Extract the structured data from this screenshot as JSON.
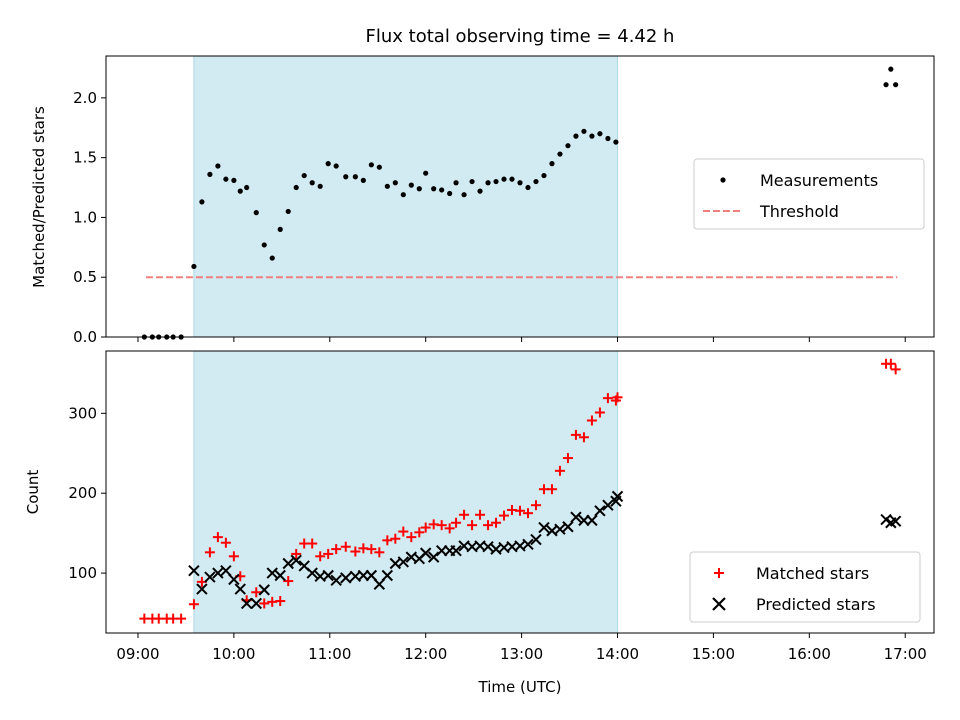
{
  "figure": {
    "title": "Flux total observing time = 4.42 h",
    "xlabel": "Time (UTC)"
  },
  "chart_data": [
    {
      "type": "scatter",
      "ylabel": "Matched/Predicted stars",
      "xlim": [
        "08:40",
        "17:18"
      ],
      "ylim": [
        0,
        2.35
      ],
      "yticks": [
        "0.0",
        "0.5",
        "1.0",
        "1.5",
        "2.0"
      ],
      "yticks_values": [
        0,
        0.5,
        1.0,
        1.5,
        2.0
      ],
      "shaded_interval": [
        "09:35",
        "14:00"
      ],
      "shade_color": "#add8e6",
      "legend": {
        "position": "center-right",
        "entries": [
          "Measurements",
          "Threshold"
        ]
      },
      "series": [
        {
          "name": "Measurements",
          "marker": "dot",
          "color": "#000000",
          "points": [
            [
              "09:04",
              0
            ],
            [
              "09:09",
              0
            ],
            [
              "09:13",
              0
            ],
            [
              "09:18",
              0
            ],
            [
              "09:22",
              0
            ],
            [
              "09:27",
              0
            ],
            [
              "09:35",
              0.59
            ],
            [
              "09:40",
              1.13
            ],
            [
              "09:45",
              1.36
            ],
            [
              "09:50",
              1.43
            ],
            [
              "09:55",
              1.32
            ],
            [
              "10:00",
              1.31
            ],
            [
              "10:04",
              1.22
            ],
            [
              "10:08",
              1.25
            ],
            [
              "10:14",
              1.04
            ],
            [
              "10:19",
              0.77
            ],
            [
              "10:24",
              0.66
            ],
            [
              "10:29",
              0.9
            ],
            [
              "10:34",
              1.05
            ],
            [
              "10:39",
              1.25
            ],
            [
              "10:44",
              1.35
            ],
            [
              "10:49",
              1.29
            ],
            [
              "10:54",
              1.26
            ],
            [
              "10:59",
              1.45
            ],
            [
              "11:04",
              1.43
            ],
            [
              "11:10",
              1.34
            ],
            [
              "11:16",
              1.34
            ],
            [
              "11:21",
              1.31
            ],
            [
              "11:26",
              1.44
            ],
            [
              "11:31",
              1.42
            ],
            [
              "11:36",
              1.26
            ],
            [
              "11:41",
              1.29
            ],
            [
              "11:46",
              1.19
            ],
            [
              "11:51",
              1.27
            ],
            [
              "11:56",
              1.24
            ],
            [
              "12:00",
              1.37
            ],
            [
              "12:05",
              1.24
            ],
            [
              "12:10",
              1.23
            ],
            [
              "12:15",
              1.2
            ],
            [
              "12:19",
              1.29
            ],
            [
              "12:24",
              1.19
            ],
            [
              "12:29",
              1.3
            ],
            [
              "12:34",
              1.22
            ],
            [
              "12:39",
              1.29
            ],
            [
              "12:44",
              1.3
            ],
            [
              "12:49",
              1.32
            ],
            [
              "12:54",
              1.32
            ],
            [
              "12:59",
              1.29
            ],
            [
              "13:04",
              1.25
            ],
            [
              "13:09",
              1.3
            ],
            [
              "13:14",
              1.35
            ],
            [
              "13:19",
              1.45
            ],
            [
              "13:24",
              1.53
            ],
            [
              "13:29",
              1.6
            ],
            [
              "13:34",
              1.68
            ],
            [
              "13:39",
              1.72
            ],
            [
              "13:44",
              1.68
            ],
            [
              "13:49",
              1.7
            ],
            [
              "13:54",
              1.66
            ],
            [
              "13:59",
              1.63
            ],
            [
              "16:48",
              2.11
            ],
            [
              "16:51",
              2.24
            ],
            [
              "16:54",
              2.11
            ]
          ]
        },
        {
          "name": "Threshold",
          "style": "dashed-line",
          "color": "#f08080",
          "points": [
            [
              "09:05",
              0.5
            ],
            [
              "16:55",
              0.5
            ]
          ]
        }
      ]
    },
    {
      "type": "scatter",
      "ylabel": "Count",
      "xlim": [
        "08:40",
        "17:18"
      ],
      "ylim": [
        25,
        378
      ],
      "yticks": [
        "100",
        "200",
        "300"
      ],
      "yticks_values": [
        100,
        200,
        300
      ],
      "xticks": [
        "09:00",
        "10:00",
        "11:00",
        "12:00",
        "13:00",
        "14:00",
        "15:00",
        "16:00",
        "17:00"
      ],
      "shaded_interval": [
        "09:35",
        "14:00"
      ],
      "shade_color": "#add8e6",
      "legend": {
        "position": "bottom-right",
        "entries": [
          "Matched stars",
          "Predicted stars"
        ]
      },
      "series": [
        {
          "name": "Matched stars",
          "marker": "plus",
          "color": "#ff0000",
          "points": [
            [
              "09:04",
              43
            ],
            [
              "09:09",
              43
            ],
            [
              "09:13",
              43
            ],
            [
              "09:18",
              43
            ],
            [
              "09:22",
              43
            ],
            [
              "09:27",
              43
            ],
            [
              "09:35",
              61
            ],
            [
              "09:40",
              89
            ],
            [
              "09:45",
              126
            ],
            [
              "09:50",
              145
            ],
            [
              "09:55",
              138
            ],
            [
              "10:00",
              121
            ],
            [
              "10:04",
              96
            ],
            [
              "10:08",
              66
            ],
            [
              "10:14",
              76
            ],
            [
              "10:19",
              62
            ],
            [
              "10:24",
              64
            ],
            [
              "10:29",
              65
            ],
            [
              "10:34",
              90
            ],
            [
              "10:39",
              124
            ],
            [
              "10:44",
              137
            ],
            [
              "10:49",
              137
            ],
            [
              "10:54",
              121
            ],
            [
              "10:59",
              124
            ],
            [
              "11:04",
              130
            ],
            [
              "11:10",
              133
            ],
            [
              "11:16",
              127
            ],
            [
              "11:21",
              131
            ],
            [
              "11:26",
              130
            ],
            [
              "11:31",
              126
            ],
            [
              "11:36",
              141
            ],
            [
              "11:41",
              143
            ],
            [
              "11:46",
              152
            ],
            [
              "11:51",
              145
            ],
            [
              "11:56",
              151
            ],
            [
              "12:00",
              157
            ],
            [
              "12:05",
              161
            ],
            [
              "12:10",
              160
            ],
            [
              "12:15",
              156
            ],
            [
              "12:19",
              163
            ],
            [
              "12:24",
              173
            ],
            [
              "12:29",
              160
            ],
            [
              "12:34",
              173
            ],
            [
              "12:39",
              160
            ],
            [
              "12:44",
              163
            ],
            [
              "12:49",
              172
            ],
            [
              "12:54",
              179
            ],
            [
              "12:59",
              178
            ],
            [
              "13:04",
              175
            ],
            [
              "13:09",
              185
            ],
            [
              "13:14",
              205
            ],
            [
              "13:19",
              205
            ],
            [
              "13:24",
              228
            ],
            [
              "13:29",
              244
            ],
            [
              "13:34",
              273
            ],
            [
              "13:39",
              270
            ],
            [
              "13:44",
              291
            ],
            [
              "13:49",
              301
            ],
            [
              "13:54",
              319
            ],
            [
              "13:59",
              316
            ],
            [
              "14:00",
              320
            ],
            [
              "16:48",
              362
            ],
            [
              "16:51",
              362
            ],
            [
              "16:54",
              355
            ]
          ]
        },
        {
          "name": "Predicted stars",
          "marker": "x",
          "color": "#000000",
          "points": [
            [
              "09:35",
              103
            ],
            [
              "09:40",
              80
            ],
            [
              "09:45",
              95
            ],
            [
              "09:50",
              100
            ],
            [
              "09:55",
              103
            ],
            [
              "10:00",
              92
            ],
            [
              "10:04",
              80
            ],
            [
              "10:08",
              62
            ],
            [
              "10:14",
              62
            ],
            [
              "10:19",
              79
            ],
            [
              "10:24",
              100
            ],
            [
              "10:29",
              97
            ],
            [
              "10:34",
              112
            ],
            [
              "10:39",
              116
            ],
            [
              "10:44",
              109
            ],
            [
              "10:49",
              100
            ],
            [
              "10:54",
              96
            ],
            [
              "10:59",
              97
            ],
            [
              "11:04",
              91
            ],
            [
              "11:10",
              94
            ],
            [
              "11:16",
              96
            ],
            [
              "11:21",
              97
            ],
            [
              "11:26",
              97
            ],
            [
              "11:31",
              86
            ],
            [
              "11:36",
              97
            ],
            [
              "11:41",
              112
            ],
            [
              "11:46",
              114
            ],
            [
              "11:51",
              120
            ],
            [
              "11:56",
              118
            ],
            [
              "12:00",
              125
            ],
            [
              "12:05",
              120
            ],
            [
              "12:10",
              128
            ],
            [
              "12:15",
              128
            ],
            [
              "12:19",
              128
            ],
            [
              "12:24",
              134
            ],
            [
              "12:29",
              133
            ],
            [
              "12:34",
              134
            ],
            [
              "12:39",
              133
            ],
            [
              "12:44",
              130
            ],
            [
              "12:49",
              132
            ],
            [
              "12:54",
              133
            ],
            [
              "12:59",
              134
            ],
            [
              "13:04",
              136
            ],
            [
              "13:09",
              142
            ],
            [
              "13:14",
              157
            ],
            [
              "13:19",
              153
            ],
            [
              "13:24",
              155
            ],
            [
              "13:29",
              158
            ],
            [
              "13:34",
              170
            ],
            [
              "13:39",
              166
            ],
            [
              "13:44",
              166
            ],
            [
              "13:49",
              178
            ],
            [
              "13:54",
              185
            ],
            [
              "13:59",
              190
            ],
            [
              "14:00",
              196
            ],
            [
              "16:48",
              167
            ],
            [
              "16:51",
              163
            ],
            [
              "16:54",
              165
            ]
          ]
        }
      ]
    }
  ]
}
